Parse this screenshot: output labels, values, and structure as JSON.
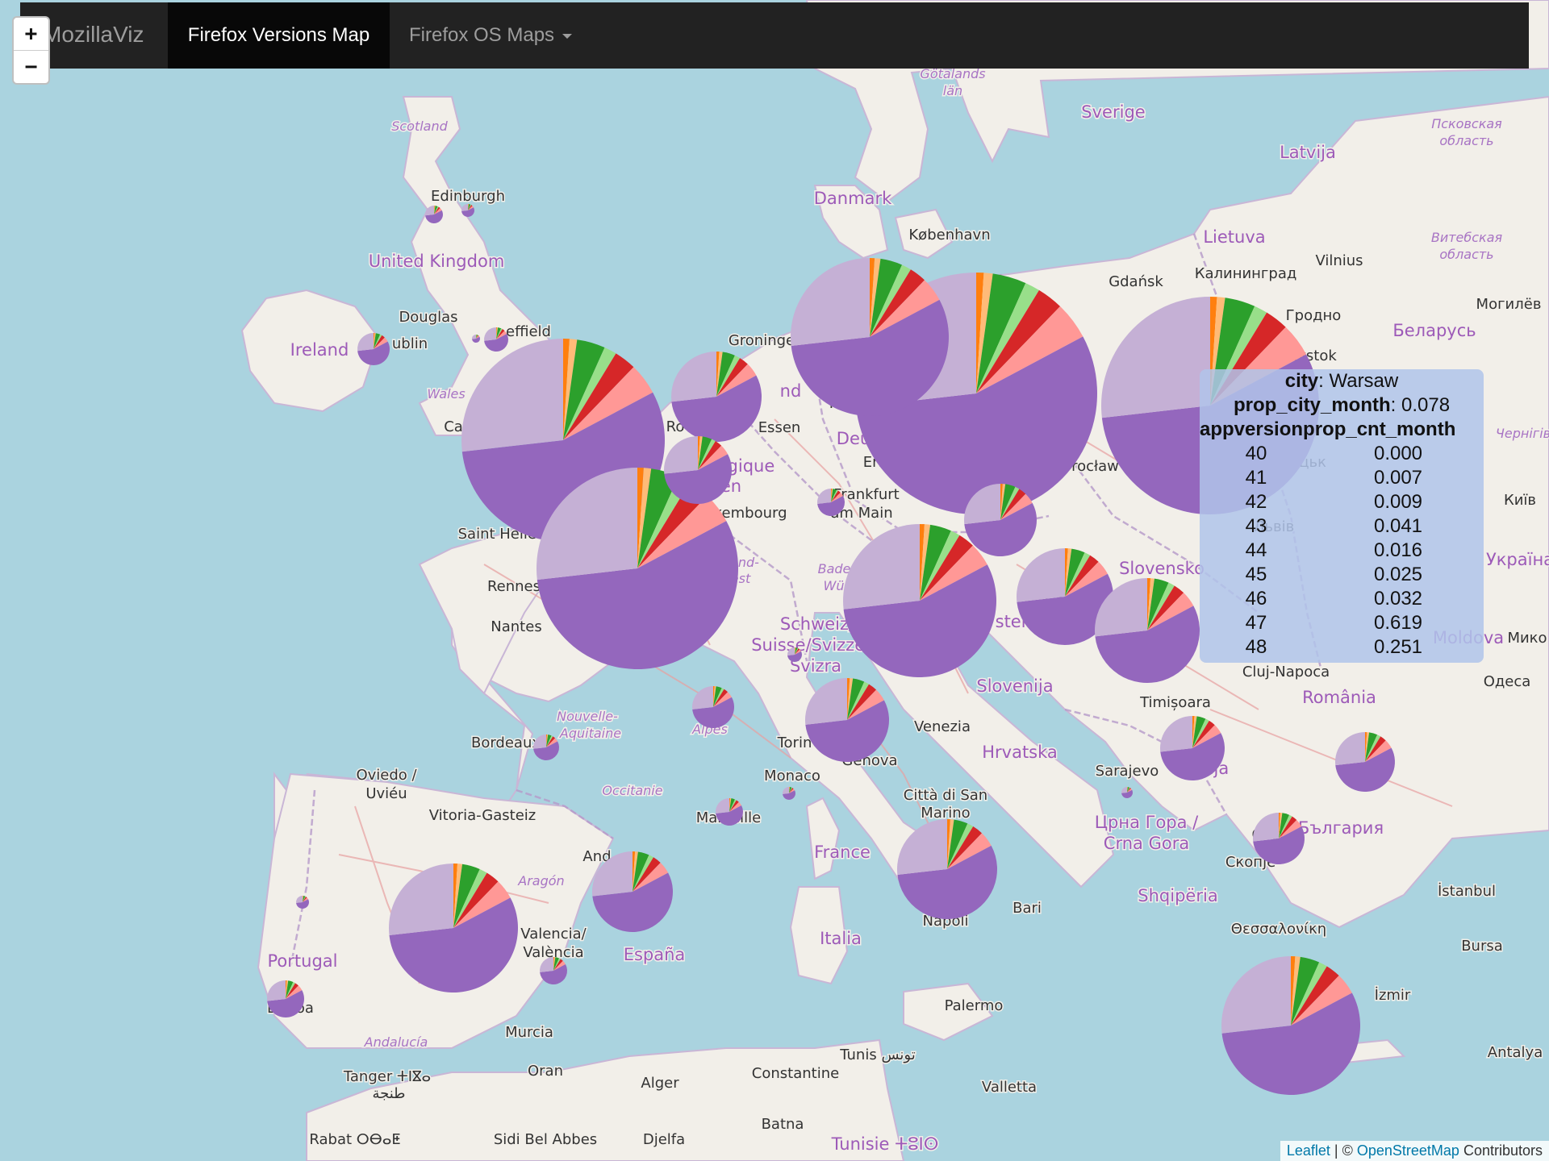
{
  "navbar": {
    "brand": "MozillaViz",
    "active_tab": "Firefox Versions Map",
    "dropdown": "Firefox OS Maps"
  },
  "zoom": {
    "in": "+",
    "out": "−"
  },
  "colors": {
    "water": "#aad3df",
    "land": "#f2efe9",
    "road": "#e89a9a",
    "border": "#b094c4",
    "pie_slices": [
      "#ff7f0e",
      "#ffbb78",
      "#2ca02c",
      "#98df8a",
      "#d62728",
      "#ff9896",
      "#9467bd",
      "#c5b0d5"
    ]
  },
  "map_labels": [
    {
      "name": "label-scotland",
      "text": "Scotland",
      "cls": "reg"
    },
    {
      "name": "label-edinburgh",
      "text": "Edinburgh",
      "cls": "city"
    },
    {
      "name": "label-united-kingdom",
      "text": "United Kingdom",
      "cls": "country"
    },
    {
      "name": "label-douglas",
      "text": "Douglas",
      "cls": "city"
    },
    {
      "name": "label-ireland",
      "text": "Ireland",
      "cls": "country"
    },
    {
      "name": "label-dublin",
      "text": "ublin",
      "cls": "city"
    },
    {
      "name": "label-sheffield",
      "text": "effield",
      "cls": "city"
    },
    {
      "name": "label-wales",
      "text": "Wales",
      "cls": "reg"
    },
    {
      "name": "label-ca",
      "text": "Ca",
      "cls": "city"
    },
    {
      "name": "label-saint-helier",
      "text": "Saint Helier",
      "cls": "city"
    },
    {
      "name": "label-rennes",
      "text": "Rennes",
      "cls": "city"
    },
    {
      "name": "label-nantes",
      "text": "Nantes",
      "cls": "city"
    },
    {
      "name": "label-bordeaux",
      "text": "Bordeaux",
      "cls": "city"
    },
    {
      "name": "label-nouvelle-aquitaine",
      "text": "Nouvelle-",
      "cls": "reg"
    },
    {
      "name": "label-aquitaine",
      "text": "Aquitaine",
      "cls": "reg"
    },
    {
      "name": "label-occitanie",
      "text": "Occitanie",
      "cls": "reg"
    },
    {
      "name": "label-alpes",
      "text": "Alpes",
      "cls": "reg"
    },
    {
      "name": "label-marseille",
      "text": "Marseille",
      "cls": "city"
    },
    {
      "name": "label-monaco",
      "text": "Monaco",
      "cls": "city"
    },
    {
      "name": "label-oviedo",
      "text": "Oviedo /",
      "cls": "city"
    },
    {
      "name": "label-uvieu",
      "text": "Uviéu",
      "cls": "city"
    },
    {
      "name": "label-vitoria-gasteiz",
      "text": "Vitoria-Gasteiz",
      "cls": "city"
    },
    {
      "name": "label-andorra",
      "text": "And",
      "cls": "city"
    },
    {
      "name": "label-aragon",
      "text": "Aragón",
      "cls": "reg"
    },
    {
      "name": "label-valencia",
      "text": "Valencia/",
      "cls": "city"
    },
    {
      "name": "label-valencia2",
      "text": "València",
      "cls": "city"
    },
    {
      "name": "label-espana",
      "text": "España",
      "cls": "country"
    },
    {
      "name": "label-portugal",
      "text": "Portugal",
      "cls": "country"
    },
    {
      "name": "label-lisboa",
      "text": "Lisboa",
      "cls": "city"
    },
    {
      "name": "label-andalucia",
      "text": "Andalucía",
      "cls": "reg"
    },
    {
      "name": "label-murcia",
      "text": "Murcia",
      "cls": "city"
    },
    {
      "name": "label-tanger",
      "text": "Tanger ⵜⵏⴵⴰ",
      "cls": "city"
    },
    {
      "name": "label-tanger2",
      "text": "طنجة",
      "cls": "city"
    },
    {
      "name": "label-rabat",
      "text": "Rabat ⵔⴱⴰⵟ",
      "cls": "city"
    },
    {
      "name": "label-oran",
      "text": "Oran",
      "cls": "city"
    },
    {
      "name": "label-sidi-bel-abbes",
      "text": "Sidi Bel Abbes",
      "cls": "city"
    },
    {
      "name": "label-alger",
      "text": "Alger",
      "cls": "city"
    },
    {
      "name": "label-constantine",
      "text": "Constantine",
      "cls": "city"
    },
    {
      "name": "label-batna",
      "text": "Batna",
      "cls": "city"
    },
    {
      "name": "label-djelfa",
      "text": "Djelfa",
      "cls": "city"
    },
    {
      "name": "label-tunis",
      "text": "Tunis تونس",
      "cls": "city"
    },
    {
      "name": "label-tunisie",
      "text": "Tunisie ⵜⵓⵏⵙ",
      "cls": "country"
    },
    {
      "name": "label-groningen",
      "text": "Groninge",
      "cls": "city"
    },
    {
      "name": "label-nd",
      "text": "nd",
      "cls": "country"
    },
    {
      "name": "label-ro",
      "text": "Ro",
      "cls": "city"
    },
    {
      "name": "label-essen",
      "text": "Essen",
      "cls": "city"
    },
    {
      "name": "label-belgique",
      "text": "lgique",
      "cls": "country"
    },
    {
      "name": "label-en",
      "text": "en",
      "cls": "country"
    },
    {
      "name": "label-luxembourg",
      "text": "xembourg",
      "cls": "city"
    },
    {
      "name": "label-frankfurt",
      "text": "Frankfurt",
      "cls": "city"
    },
    {
      "name": "label-am-main",
      "text": "am Main",
      "cls": "city"
    },
    {
      "name": "label-deu",
      "text": "Deu",
      "cls": "country"
    },
    {
      "name": "label-erfu",
      "text": "Erfu",
      "cls": "city"
    },
    {
      "name": "label-ha",
      "text": "Ha",
      "cls": "city"
    },
    {
      "name": "label-bade",
      "text": "Bade",
      "cls": "reg"
    },
    {
      "name": "label-wurtte",
      "text": "Württe",
      "cls": "reg"
    },
    {
      "name": "label-and",
      "text": "and-",
      "cls": "reg"
    },
    {
      "name": "label-est",
      "text": "est",
      "cls": "reg"
    },
    {
      "name": "label-schweiz",
      "text": "Schweiz/",
      "cls": "country"
    },
    {
      "name": "label-suisse",
      "text": "Suisse/Svizzer",
      "cls": "country"
    },
    {
      "name": "label-svizra",
      "text": "Svizra",
      "cls": "country"
    },
    {
      "name": "label-torino",
      "text": "Torin",
      "cls": "city"
    },
    {
      "name": "label-genova",
      "text": "Genova",
      "cls": "city"
    },
    {
      "name": "label-venezia",
      "text": "Venezia",
      "cls": "city"
    },
    {
      "name": "label-citta-di-san",
      "text": "Città di San",
      "cls": "city"
    },
    {
      "name": "label-marino",
      "text": "Marino",
      "cls": "city"
    },
    {
      "name": "label-france",
      "text": "France",
      "cls": "country"
    },
    {
      "name": "label-italia",
      "text": "Italia",
      "cls": "country"
    },
    {
      "name": "label-napoli",
      "text": "Napoli",
      "cls": "city"
    },
    {
      "name": "label-bari",
      "text": "Bari",
      "cls": "city"
    },
    {
      "name": "label-palermo",
      "text": "Palermo",
      "cls": "city"
    },
    {
      "name": "label-valletta",
      "text": "Valletta",
      "cls": "city"
    },
    {
      "name": "label-gotalands",
      "text": "Götalands",
      "cls": "reg"
    },
    {
      "name": "label-lan",
      "text": "län",
      "cls": "reg"
    },
    {
      "name": "label-sverige",
      "text": "Sverige",
      "cls": "country"
    },
    {
      "name": "label-danmark",
      "text": "Danmark",
      "cls": "country"
    },
    {
      "name": "label-kobenhavn",
      "text": "København",
      "cls": "city"
    },
    {
      "name": "label-latvija",
      "text": "Latvija",
      "cls": "country"
    },
    {
      "name": "label-pskov",
      "text": "Псковская",
      "cls": "reg"
    },
    {
      "name": "label-pskov2",
      "text": "область",
      "cls": "reg"
    },
    {
      "name": "label-lietuva",
      "text": "Lietuva",
      "cls": "country"
    },
    {
      "name": "label-vilnius",
      "text": "Vilnius",
      "cls": "city"
    },
    {
      "name": "label-vitebsk",
      "text": "Витебская",
      "cls": "reg"
    },
    {
      "name": "label-vitebsk2",
      "text": "область",
      "cls": "reg"
    },
    {
      "name": "label-gdansk",
      "text": "Gdańsk",
      "cls": "city"
    },
    {
      "name": "label-kaliningrad",
      "text": "Калининград",
      "cls": "city"
    },
    {
      "name": "label-grodno",
      "text": "Гродно",
      "cls": "city"
    },
    {
      "name": "label-mogilev",
      "text": "Могилёв",
      "cls": "city"
    },
    {
      "name": "label-belarus",
      "text": "Беларусь",
      "cls": "country"
    },
    {
      "name": "label-bialystok",
      "text": "lystok",
      "cls": "city"
    },
    {
      "name": "label-wroclaw",
      "text": "Wrocław",
      "cls": "city"
    },
    {
      "name": "label-ko",
      "text": "ko",
      "cls": "country"
    },
    {
      "name": "label-kra",
      "text": "Kra",
      "cls": "city"
    },
    {
      "name": "label-kyiv",
      "text": "Київ",
      "cls": "city"
    },
    {
      "name": "label-ukraina",
      "text": "Україна",
      "cls": "country"
    },
    {
      "name": "label-slovensko",
      "text": "Slovensko",
      "cls": "country"
    },
    {
      "name": "label-graz",
      "text": "Graz",
      "cls": "city"
    },
    {
      "name": "label-oster",
      "text": "ster",
      "cls": "country"
    },
    {
      "name": "label-slovenija",
      "text": "Slovenija",
      "cls": "country"
    },
    {
      "name": "label-hrvatska",
      "text": "Hrvatska",
      "cls": "country"
    },
    {
      "name": "label-cluj",
      "text": "Cluj-Napoca",
      "cls": "city"
    },
    {
      "name": "label-timisoara",
      "text": "Timișoara",
      "cls": "city"
    },
    {
      "name": "label-romania",
      "text": "România",
      "cls": "country"
    },
    {
      "name": "label-odesa",
      "text": "Одеса",
      "cls": "city"
    },
    {
      "name": "label-miko",
      "text": "Мико",
      "cls": "city"
    },
    {
      "name": "label-sarajevo",
      "text": "Sarajevo",
      "cls": "city"
    },
    {
      "name": "label-srbija",
      "text": "ija",
      "cls": "country"
    },
    {
      "name": "label-crna-gora",
      "text": "Црна Гора /",
      "cls": "country"
    },
    {
      "name": "label-crna-gora2",
      "text": "Crna Gora",
      "cls": "country"
    },
    {
      "name": "label-sofia",
      "text": "Соф",
      "cls": "city"
    },
    {
      "name": "label-bulgaria",
      "text": "България",
      "cls": "country"
    },
    {
      "name": "label-skopje",
      "text": "Скопје",
      "cls": "city"
    },
    {
      "name": "label-shqiperia",
      "text": "Shqipëria",
      "cls": "country"
    },
    {
      "name": "label-thessaloniki",
      "text": "Θεσσαλονίκη",
      "cls": "city"
    },
    {
      "name": "label-istanbul",
      "text": "İstanbul",
      "cls": "city"
    },
    {
      "name": "label-bursa",
      "text": "Bursa",
      "cls": "city"
    },
    {
      "name": "label-izmir",
      "text": "İzmir",
      "cls": "city"
    },
    {
      "name": "label-antalya",
      "text": "Antalya",
      "cls": "city"
    },
    {
      "name": "label-chernihiv",
      "text": "Чернігів",
      "cls": "reg"
    },
    {
      "name": "label-lutsk",
      "text": "Луцьк",
      "cls": "city"
    },
    {
      "name": "label-lviv",
      "text": "Львів",
      "cls": "city"
    },
    {
      "name": "label-moldova",
      "text": "Moldova",
      "cls": "country"
    }
  ],
  "info_panel": {
    "city_label": "city",
    "city_value": "Warsaw",
    "prop_label": "prop_city_month",
    "prop_value": "0.078",
    "header": "appversionprop_cnt_month",
    "rows": [
      {
        "version": "40",
        "prop": "0.000"
      },
      {
        "version": "41",
        "prop": "0.007"
      },
      {
        "version": "42",
        "prop": "0.009"
      },
      {
        "version": "43",
        "prop": "0.041"
      },
      {
        "version": "44",
        "prop": "0.016"
      },
      {
        "version": "45",
        "prop": "0.025"
      },
      {
        "version": "46",
        "prop": "0.032"
      },
      {
        "version": "47",
        "prop": "0.619"
      },
      {
        "version": "48",
        "prop": "0.251"
      }
    ]
  },
  "attribution": {
    "leaflet": "Leaflet",
    "sep": "| ©",
    "osm": "OpenStreetMap",
    "contrib": "Contributors"
  }
}
